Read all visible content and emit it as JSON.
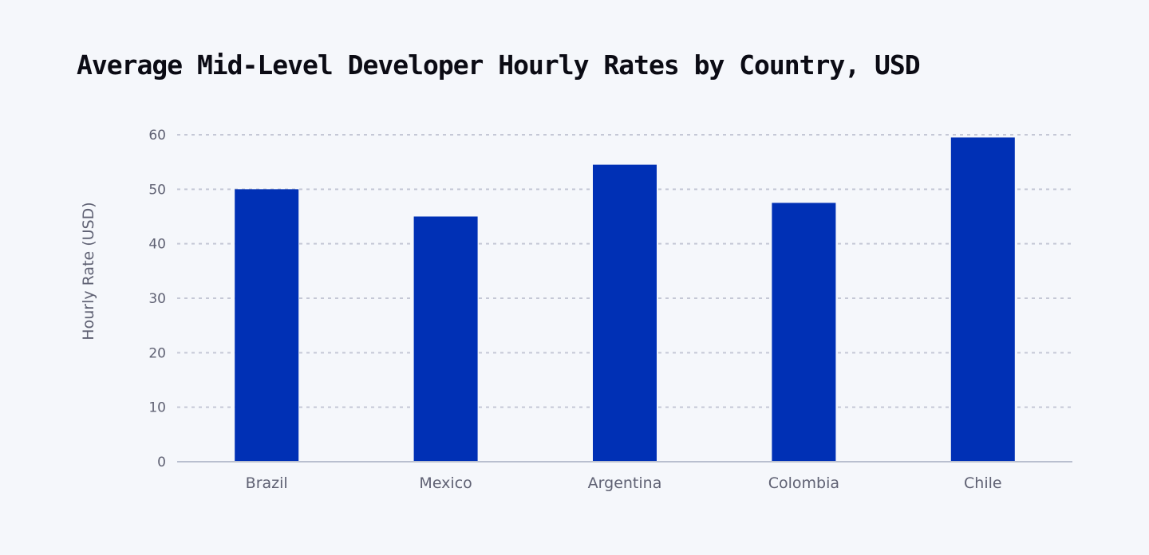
{
  "chart_data": {
    "type": "bar",
    "title": "Average Mid-Level Developer Hourly Rates by Country, USD",
    "xlabel": "",
    "ylabel": "Hourly Rate (USD)",
    "categories": [
      "Brazil",
      "Mexico",
      "Argentina",
      "Colombia",
      "Chile"
    ],
    "values": [
      50,
      45,
      54.5,
      47.5,
      59.5
    ],
    "ylim": [
      0,
      60
    ],
    "yticks": [
      0,
      10,
      20,
      30,
      40,
      50,
      60
    ],
    "grid": true,
    "bar_color": "#0030b5",
    "grid_color": "#c5c8d6"
  }
}
